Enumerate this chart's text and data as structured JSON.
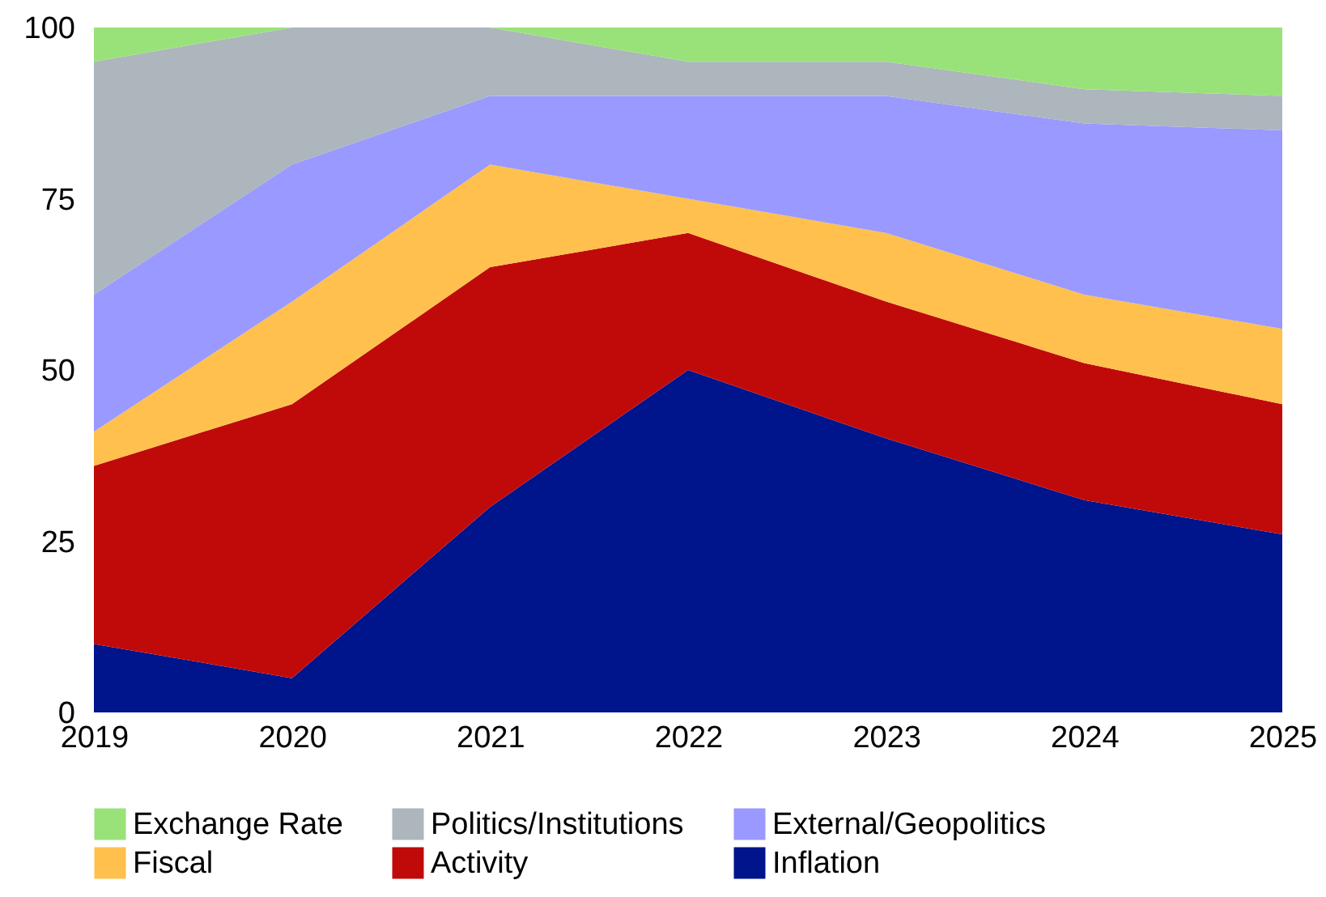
{
  "chart_data": {
    "type": "area",
    "stacked": true,
    "x": [
      2019,
      2020,
      2021,
      2022,
      2023,
      2024,
      2025
    ],
    "xlim": [
      2019,
      2025
    ],
    "xticks": [
      2019,
      2020,
      2021,
      2022,
      2023,
      2024,
      2025
    ],
    "ylim": [
      0,
      100
    ],
    "yticks": [
      0,
      25,
      50,
      75,
      100
    ],
    "grid": false,
    "legend": "bottom",
    "series": [
      {
        "name": "Inflation",
        "color": "#00148c",
        "values": [
          10,
          5,
          30,
          50,
          40,
          31,
          26
        ]
      },
      {
        "name": "Activity",
        "color": "#c00a0a",
        "values": [
          26,
          40,
          35,
          20,
          20,
          20,
          19
        ]
      },
      {
        "name": "Fiscal",
        "color": "#ffc04d",
        "values": [
          5,
          15,
          15,
          5,
          10,
          10,
          11
        ]
      },
      {
        "name": "External/Geopolitics",
        "color": "#9999ff",
        "values": [
          20,
          20,
          10,
          15,
          20,
          25,
          29
        ]
      },
      {
        "name": "Politics/Institutions",
        "color": "#adb5bd",
        "values": [
          34,
          20,
          10,
          5,
          5,
          5,
          5
        ]
      },
      {
        "name": "Exchange Rate",
        "color": "#99e27a",
        "values": [
          5,
          0,
          0,
          5,
          5,
          9,
          10
        ]
      }
    ]
  }
}
